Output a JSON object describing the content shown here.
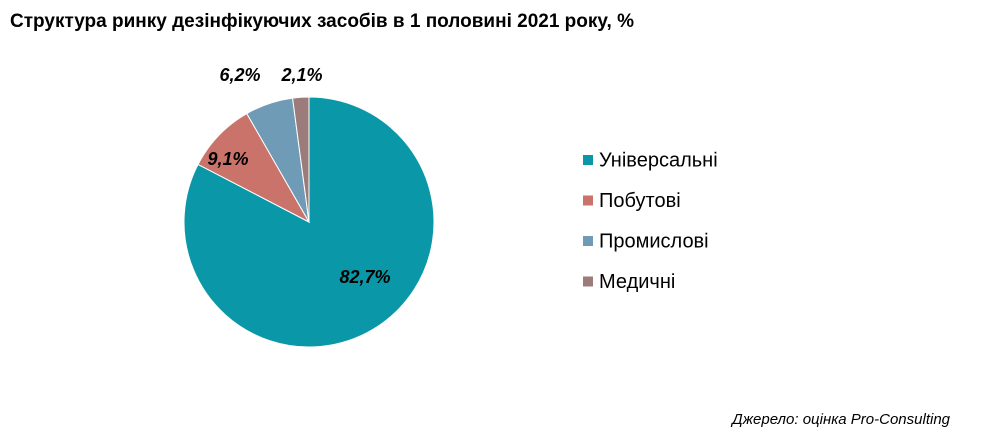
{
  "chart_data": {
    "type": "pie",
    "title": "Структура ринку дезінфікуючих засобів в 1 половині 2021 року, %",
    "categories": [
      "Універсальні",
      "Побутові",
      "Промислові",
      "Медичні"
    ],
    "values": [
      82.7,
      9.1,
      6.2,
      2.1
    ],
    "value_labels": [
      "82,7%",
      "9,1%",
      "6,2%",
      "2,1%"
    ],
    "colors": [
      "#0a98a8",
      "#c9736b",
      "#6f9bb7",
      "#9b7c7a"
    ],
    "source": "Джерело: оцінка Pro-Consulting"
  }
}
